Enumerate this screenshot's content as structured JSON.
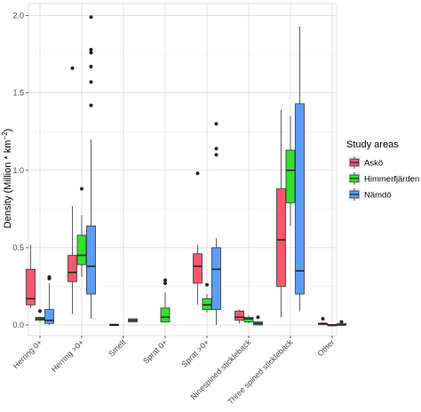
{
  "chart_data": {
    "type": "boxplot",
    "ylabel": "Density (Million * km",
    "ylabel_sup": "−2",
    "ylabel_close": ")",
    "ylim": [
      0,
      2.0
    ],
    "yticks": [
      "0.0",
      "0.5",
      "1.0",
      "1.5",
      "2.0"
    ],
    "ytick_values": [
      0,
      0.5,
      1.0,
      1.5,
      2.0
    ],
    "categories": [
      "Herring 0+",
      "Herring >0+",
      "Smelt",
      "Sprat 0+",
      "Sprat >0+",
      "Ninespined stickleback",
      "Three spined stickleback",
      "Other"
    ],
    "grid": true,
    "legend": {
      "title": "Study areas",
      "placement": "right",
      "entries": [
        {
          "name": "Askö",
          "color": "#F8576E"
        },
        {
          "name": "Himmerfjärden",
          "color": "#33E02C"
        },
        {
          "name": "Nämdö",
          "color": "#5B9EF5"
        }
      ]
    },
    "series": [
      {
        "name": "Askö",
        "color": "#F8576E",
        "boxes": [
          {
            "category": "Herring 0+",
            "low": 0.11,
            "q1": 0.13,
            "median": 0.17,
            "q3": 0.36,
            "high": 0.52,
            "outliers": []
          },
          {
            "category": "Herring >0+",
            "low": 0.07,
            "q1": 0.28,
            "median": 0.34,
            "q3": 0.45,
            "high": 0.77,
            "outliers": [
              1.66
            ]
          },
          {
            "category": "Smelt",
            "low": 0.0,
            "q1": 0.0,
            "median": 0.0,
            "q3": 0.005,
            "high": 0.005,
            "outliers": []
          },
          {
            "category": "Sprat 0+",
            "low": null,
            "q1": null,
            "median": null,
            "q3": null,
            "high": null,
            "outliers": []
          },
          {
            "category": "Sprat >0+",
            "low": 0.13,
            "q1": 0.27,
            "median": 0.38,
            "q3": 0.46,
            "high": 0.52,
            "outliers": [
              0.98
            ]
          },
          {
            "category": "Ninespined stickleback",
            "low": 0.01,
            "q1": 0.03,
            "median": 0.05,
            "q3": 0.09,
            "high": 0.1,
            "outliers": []
          },
          {
            "category": "Three spined stickleback",
            "low": 0.05,
            "q1": 0.25,
            "median": 0.55,
            "q3": 0.88,
            "high": 1.39,
            "outliers": []
          },
          {
            "category": "Other",
            "low": 0.005,
            "q1": 0.005,
            "median": 0.01,
            "q3": 0.01,
            "high": 0.015,
            "outliers": [
              0.04
            ]
          }
        ]
      },
      {
        "name": "Himmerfjärden",
        "color": "#33E02C",
        "boxes": [
          {
            "category": "Herring 0+",
            "low": 0.02,
            "q1": 0.03,
            "median": 0.04,
            "q3": 0.05,
            "high": 0.05,
            "outliers": [
              0.09
            ]
          },
          {
            "category": "Herring >0+",
            "low": 0.31,
            "q1": 0.39,
            "median": 0.45,
            "q3": 0.58,
            "high": 0.71,
            "outliers": [
              0.88
            ]
          },
          {
            "category": "Smelt",
            "low": null,
            "q1": null,
            "median": null,
            "q3": null,
            "high": null,
            "outliers": []
          },
          {
            "category": "Sprat 0+",
            "low": 0.02,
            "q1": 0.02,
            "median": 0.05,
            "q3": 0.11,
            "high": 0.21,
            "outliers": [
              0.27,
              0.29
            ]
          },
          {
            "category": "Sprat >0+",
            "low": 0.08,
            "q1": 0.1,
            "median": 0.13,
            "q3": 0.17,
            "high": 0.2,
            "outliers": [
              0.26
            ]
          },
          {
            "category": "Ninespined stickleback",
            "low": 0.01,
            "q1": 0.02,
            "median": 0.04,
            "q3": 0.05,
            "high": 0.06,
            "outliers": []
          },
          {
            "category": "Three spined stickleback",
            "low": 0.64,
            "q1": 0.79,
            "median": 1.0,
            "q3": 1.13,
            "high": 1.35,
            "outliers": []
          },
          {
            "category": "Other",
            "low": 0.0,
            "q1": 0.0,
            "median": 0.0,
            "q3": 0.003,
            "high": 0.003,
            "outliers": []
          }
        ]
      },
      {
        "name": "Nämdö",
        "color": "#5B9EF5",
        "boxes": [
          {
            "category": "Herring 0+",
            "low": 0.0,
            "q1": 0.01,
            "median": 0.03,
            "q3": 0.1,
            "high": 0.27,
            "outliers": [
              0.3,
              0.31
            ]
          },
          {
            "category": "Herring >0+",
            "low": 0.04,
            "q1": 0.2,
            "median": 0.38,
            "q3": 0.64,
            "high": 1.2,
            "outliers": [
              1.42,
              1.57,
              1.67,
              1.76,
              1.78,
              1.99
            ]
          },
          {
            "category": "Smelt",
            "low": 0.02,
            "q1": 0.02,
            "median": 0.03,
            "q3": 0.04,
            "high": 0.04,
            "outliers": []
          },
          {
            "category": "Sprat 0+",
            "low": null,
            "q1": null,
            "median": null,
            "q3": null,
            "high": null,
            "outliers": []
          },
          {
            "category": "Sprat >0+",
            "low": 0.0,
            "q1": 0.1,
            "median": 0.36,
            "q3": 0.5,
            "high": 0.56,
            "outliers": [
              1.1,
              1.14,
              1.3
            ]
          },
          {
            "category": "Ninespined stickleback",
            "low": 0.0,
            "q1": 0.0,
            "median": 0.01,
            "q3": 0.02,
            "high": 0.02,
            "outliers": [
              0.05
            ]
          },
          {
            "category": "Three spined stickleback",
            "low": 0.09,
            "q1": 0.2,
            "median": 0.35,
            "q3": 1.43,
            "high": 1.93,
            "outliers": []
          },
          {
            "category": "Other",
            "low": 0.0,
            "q1": 0.0,
            "median": 0.0,
            "q3": 0.01,
            "high": 0.01,
            "outliers": [
              0.02
            ]
          }
        ]
      }
    ]
  }
}
